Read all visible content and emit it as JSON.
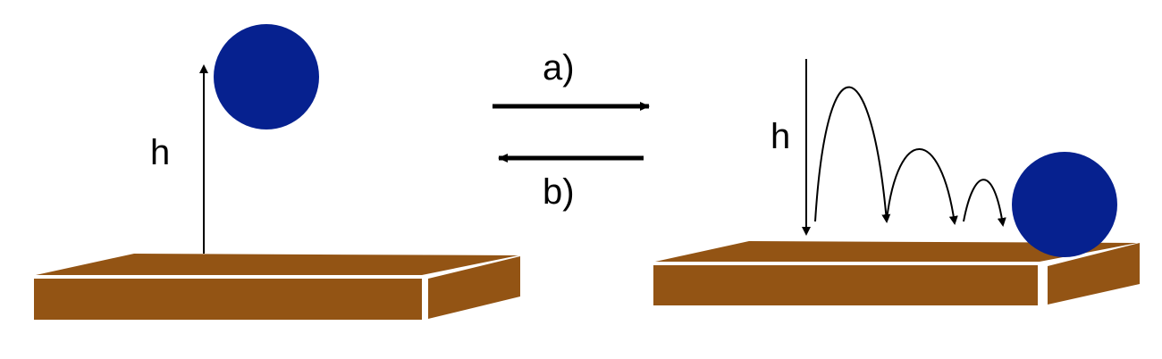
{
  "labels": {
    "left_height": "h",
    "right_height": "h",
    "arrow_forward": "a)",
    "arrow_backward": "b)"
  },
  "colors": {
    "ball": "#06218f",
    "slab": "#935414",
    "line": "#000000",
    "background": "#ffffff"
  }
}
